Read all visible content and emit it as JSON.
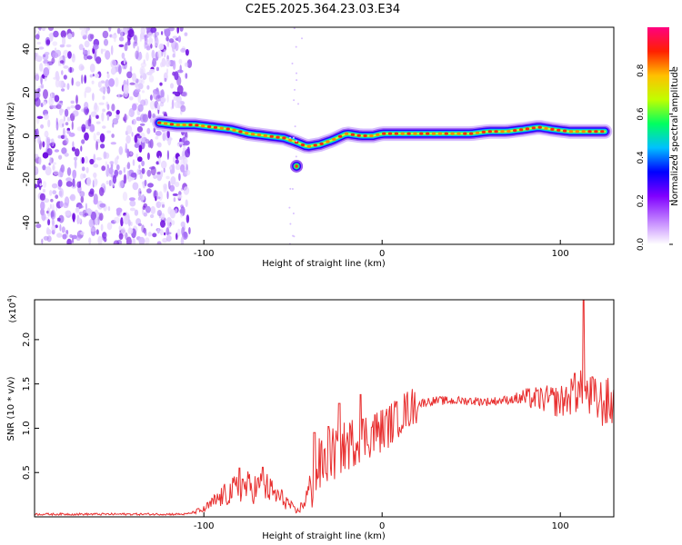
{
  "title": "C2E5.2025.364.23.03.E34",
  "chart_data": [
    {
      "type": "heatmap",
      "name": "spectrogram",
      "xlabel": "Height of straight line (km)",
      "ylabel": "Frequency (Hz)",
      "xlim": [
        -195,
        130
      ],
      "ylim": [
        -50,
        50
      ],
      "xticks": [
        -100,
        0,
        100
      ],
      "yticks": [
        -40,
        -20,
        0,
        20,
        40
      ],
      "xtick_labels": [
        "-100",
        "0",
        "100"
      ],
      "ytick_labels": [
        "-40",
        "-20",
        "0",
        "20",
        "40"
      ],
      "colorbar": {
        "label": "Normalized spectral amplitude",
        "range": [
          0,
          1
        ],
        "ticks": [
          0.0,
          0.2,
          0.4,
          0.6,
          0.8
        ],
        "tick_labels": [
          "0.0",
          "0.2",
          "0.4",
          "0.6",
          "0.8"
        ],
        "colors": [
          "#ffffff",
          "#c080ff",
          "#8000ff",
          "#0000ff",
          "#00c0ff",
          "#00ff60",
          "#c0ff00",
          "#ffc000",
          "#ff2000",
          "#ff0080"
        ]
      },
      "noise_region_x": [
        -195,
        -108
      ],
      "signal_trace": {
        "x": [
          -125,
          -115,
          -105,
          -95,
          -85,
          -75,
          -65,
          -55,
          -48,
          -42,
          -35,
          -28,
          -20,
          -12,
          -5,
          0,
          10,
          20,
          30,
          40,
          50,
          60,
          70,
          80,
          88,
          95,
          105,
          115,
          125
        ],
        "freq": [
          6,
          5,
          5,
          4,
          3,
          1,
          0,
          -1,
          -3,
          -5,
          -4,
          -2,
          1,
          0,
          0,
          1,
          1,
          1,
          1,
          1,
          1,
          2,
          2,
          3,
          4,
          3,
          2,
          2,
          2
        ]
      },
      "blob": {
        "x": -48,
        "freq": -14
      }
    },
    {
      "type": "line",
      "name": "snr",
      "xlabel": "Height of straight line (km)",
      "ylabel": "SNR (10 * v/v)",
      "y_multiplier": "(x10",
      "y_multiplier_exp": "4",
      "y_multiplier_close": ")",
      "xlim": [
        -195,
        130
      ],
      "ylim": [
        0,
        2.45
      ],
      "xticks": [
        -100,
        0,
        100
      ],
      "yticks": [
        0.5,
        1.0,
        1.5,
        2.0
      ],
      "xtick_labels": [
        "-100",
        "0",
        "100"
      ],
      "ytick_labels": [
        "0.5",
        "1.0",
        "1.5",
        "2.0"
      ],
      "color": "#e83030",
      "envelope": {
        "x": [
          -195,
          -110,
          -100,
          -92,
          -85,
          -78,
          -72,
          -66,
          -60,
          -54,
          -48,
          -44,
          -40,
          -36,
          -32,
          -28,
          -24,
          -20,
          -16,
          -12,
          -8,
          -4,
          0,
          5,
          10,
          15,
          20,
          25,
          30,
          40,
          50,
          60,
          70,
          80,
          90,
          100,
          105,
          110,
          113,
          116,
          120,
          125,
          130
        ],
        "y": [
          0.03,
          0.03,
          0.08,
          0.2,
          0.28,
          0.35,
          0.32,
          0.35,
          0.25,
          0.18,
          0.05,
          0.15,
          0.35,
          0.55,
          0.62,
          0.7,
          0.75,
          0.8,
          0.85,
          0.9,
          0.92,
          0.95,
          0.98,
          1.05,
          1.15,
          1.22,
          1.27,
          1.3,
          1.31,
          1.31,
          1.31,
          1.3,
          1.32,
          1.34,
          1.33,
          1.3,
          1.35,
          1.4,
          1.45,
          1.35,
          1.3,
          1.28,
          1.28
        ]
      },
      "spikes": [
        {
          "x": -80,
          "y": 0.55
        },
        {
          "x": -67,
          "y": 0.56
        },
        {
          "x": -38,
          "y": 0.95
        },
        {
          "x": -30,
          "y": 1.02
        },
        {
          "x": -24,
          "y": 1.28
        },
        {
          "x": -12,
          "y": 1.38
        },
        {
          "x": -4,
          "y": 1.15
        },
        {
          "x": 8,
          "y": 1.3
        },
        {
          "x": 108,
          "y": 1.62
        },
        {
          "x": 113,
          "y": 2.45
        },
        {
          "x": 118,
          "y": 1.58
        }
      ]
    }
  ]
}
